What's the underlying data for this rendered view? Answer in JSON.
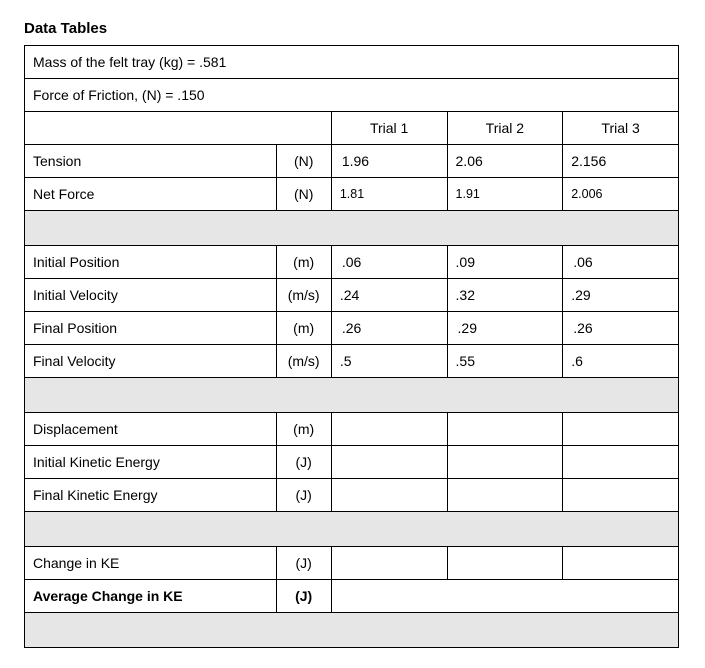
{
  "title": "Data Tables",
  "info": {
    "mass_line": "Mass of the felt tray (kg) = .581",
    "friction_line": "Force of Friction,   (N)  = .150"
  },
  "headers": {
    "trial1": "Trial 1",
    "trial2": "Trial 2",
    "trial3": "Trial 3"
  },
  "rows": {
    "tension": {
      "label": "Tension",
      "unit": "(N)",
      "t1": "1.96",
      "t2": "2.06",
      "t3": "2.156"
    },
    "netforce": {
      "label": "Net Force",
      "unit": "(N)",
      "t1": "1.81",
      "t2": "1.91",
      "t3": "2.006",
      "small": true
    },
    "initpos": {
      "label": "Initial Position",
      "unit": "(m)",
      "t1": ".06",
      "t2": ".09",
      "t3": ".06"
    },
    "initvel": {
      "label": "Initial Velocity",
      "unit": "(m/s)",
      "t1": ".24",
      "t2": ".32",
      "t3": ".29"
    },
    "finalpos": {
      "label": "Final Position",
      "unit": "(m)",
      "t1": ".26",
      "t2": ".29",
      "t3": ".26"
    },
    "finalvel": {
      "label": "Final Velocity",
      "unit": "(m/s)",
      "t1": ".5",
      "t2": ".55",
      "t3": ".6"
    },
    "disp": {
      "label": "Displacement",
      "unit": "(m)",
      "t1": "",
      "t2": "",
      "t3": ""
    },
    "initke": {
      "label": "Initial Kinetic Energy",
      "unit": "(J)",
      "t1": "",
      "t2": "",
      "t3": ""
    },
    "finalke": {
      "label": "Final Kinetic Energy",
      "unit": "(J)",
      "t1": "",
      "t2": "",
      "t3": ""
    },
    "changeke": {
      "label": "Change in KE",
      "unit": "(J)",
      "t1": "",
      "t2": "",
      "t3": ""
    },
    "avgchangeke": {
      "label": "Average Change in KE",
      "unit": "(J)",
      "merged": "",
      "bold": true
    }
  }
}
